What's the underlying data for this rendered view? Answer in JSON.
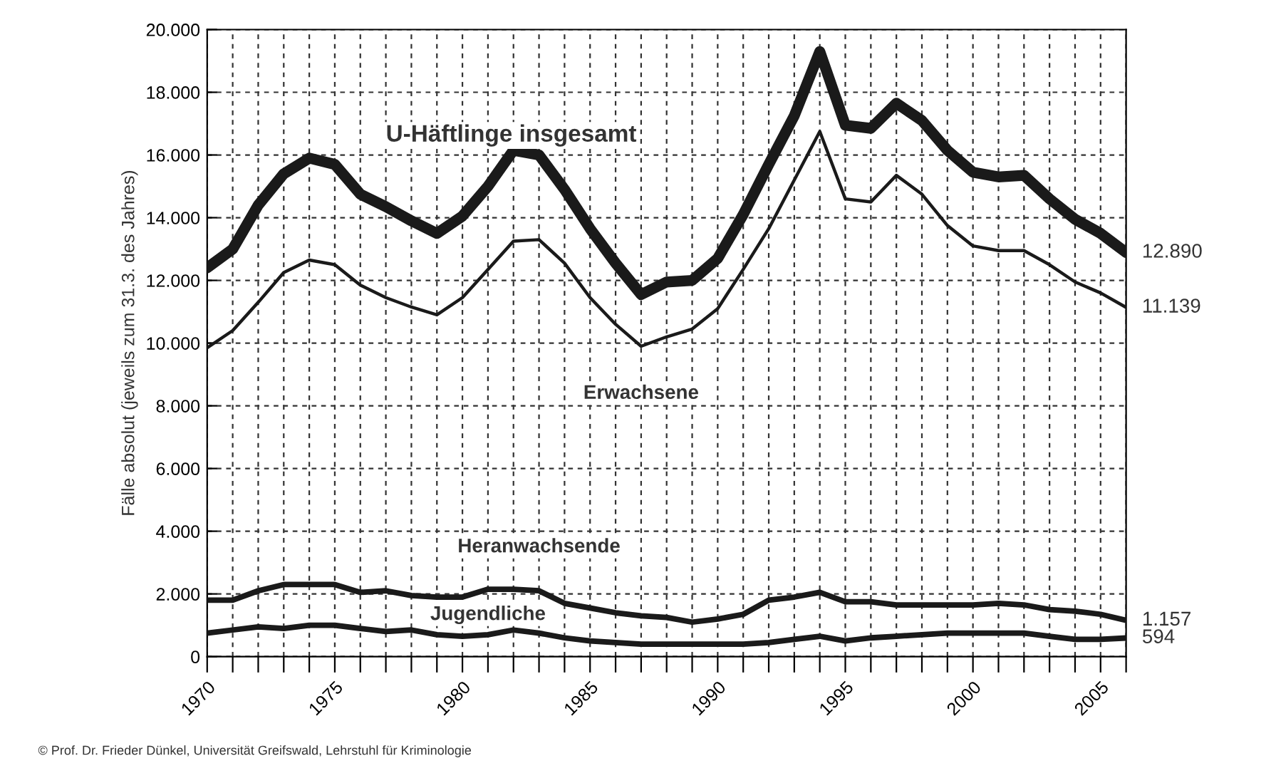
{
  "chart_data": {
    "type": "line",
    "ylabel": "Fälle absolut (jeweils zum 31.3. des Jahres)",
    "x": [
      1970,
      1971,
      1972,
      1973,
      1974,
      1975,
      1976,
      1977,
      1978,
      1979,
      1980,
      1981,
      1982,
      1983,
      1984,
      1985,
      1986,
      1987,
      1988,
      1989,
      1990,
      1991,
      1992,
      1993,
      1994,
      1995,
      1996,
      1997,
      1998,
      1999,
      2000,
      2001,
      2002,
      2003,
      2004,
      2005,
      2006
    ],
    "series": [
      {
        "name": "U-Häftlinge insgesamt",
        "color": "#1a1a1a",
        "values": [
          12400,
          13000,
          14400,
          15400,
          15900,
          15700,
          14750,
          14350,
          13900,
          13500,
          14050,
          15000,
          16150,
          16000,
          14900,
          13650,
          12550,
          11550,
          11950,
          12000,
          12700,
          14100,
          15700,
          17250,
          19300,
          16950,
          16850,
          17650,
          17100,
          16150,
          15450,
          15300,
          15350,
          14600,
          13950,
          13500,
          12890
        ],
        "value_labels": [
          null,
          null,
          null,
          null,
          null,
          null,
          null,
          null,
          null,
          null,
          null,
          null,
          null,
          null,
          null,
          null,
          null,
          null,
          null,
          null,
          null,
          null,
          null,
          null,
          null,
          null,
          null,
          null,
          null,
          null,
          null,
          null,
          null,
          null,
          null,
          null,
          "12.890"
        ]
      },
      {
        "name": "Erwachsene",
        "color": "#1a1a1a",
        "values": [
          9850,
          10400,
          11300,
          12250,
          12650,
          12500,
          11850,
          11450,
          11150,
          10900,
          11450,
          12350,
          13250,
          13300,
          12550,
          11450,
          10600,
          9900,
          10200,
          10450,
          11100,
          12350,
          13650,
          15200,
          16750,
          14600,
          14500,
          15350,
          14750,
          13750,
          13100,
          12950,
          12950,
          12500,
          11950,
          11600,
          11139
        ],
        "value_labels": [
          null,
          null,
          null,
          null,
          null,
          null,
          null,
          null,
          null,
          null,
          null,
          null,
          null,
          null,
          null,
          null,
          null,
          null,
          null,
          null,
          null,
          null,
          null,
          null,
          null,
          null,
          null,
          null,
          null,
          null,
          null,
          null,
          null,
          null,
          null,
          null,
          "11.139"
        ]
      },
      {
        "name": "Heranwachsende",
        "color": "#1a1a1a",
        "values": [
          1800,
          1800,
          2100,
          2300,
          2300,
          2300,
          2050,
          2100,
          1950,
          1900,
          1900,
          2150,
          2150,
          2100,
          1700,
          1550,
          1400,
          1300,
          1250,
          1100,
          1200,
          1350,
          1800,
          1900,
          2050,
          1750,
          1750,
          1650,
          1650,
          1650,
          1650,
          1700,
          1650,
          1500,
          1450,
          1350,
          1157
        ],
        "value_labels": [
          null,
          null,
          null,
          null,
          null,
          null,
          null,
          null,
          null,
          null,
          null,
          null,
          null,
          null,
          null,
          null,
          null,
          null,
          null,
          null,
          null,
          null,
          null,
          null,
          null,
          null,
          null,
          null,
          null,
          null,
          null,
          null,
          null,
          null,
          null,
          null,
          "1.157"
        ]
      },
      {
        "name": "Jugendliche",
        "color": "#1a1a1a",
        "values": [
          750,
          850,
          950,
          900,
          1000,
          1000,
          900,
          800,
          850,
          700,
          650,
          700,
          850,
          750,
          600,
          500,
          450,
          400,
          400,
          400,
          400,
          400,
          450,
          550,
          650,
          500,
          600,
          650,
          700,
          750,
          750,
          750,
          750,
          650,
          550,
          550,
          594
        ],
        "value_labels": [
          null,
          null,
          null,
          null,
          null,
          null,
          null,
          null,
          null,
          null,
          null,
          null,
          null,
          null,
          null,
          null,
          null,
          null,
          null,
          null,
          null,
          null,
          null,
          null,
          null,
          null,
          null,
          null,
          null,
          null,
          null,
          null,
          null,
          null,
          null,
          null,
          "594"
        ]
      }
    ],
    "xlim": [
      1970,
      2006
    ],
    "xticks": [
      1970,
      {
        "value": 1971,
        "label": null
      },
      {
        "value": 1972,
        "label": null
      },
      {
        "value": 1973,
        "label": null
      },
      {
        "value": 1974,
        "label": null
      },
      1975,
      {
        "value": 1976,
        "label": null
      },
      {
        "value": 1977,
        "label": null
      },
      {
        "value": 1978,
        "label": null
      },
      {
        "value": 1979,
        "label": null
      },
      1980,
      {
        "value": 1981,
        "label": null
      },
      {
        "value": 1982,
        "label": null
      },
      {
        "value": 1983,
        "label": null
      },
      {
        "value": 1984,
        "label": null
      },
      1985,
      {
        "value": 1986,
        "label": null
      },
      {
        "value": 1987,
        "label": null
      },
      {
        "value": 1988,
        "label": null
      },
      {
        "value": 1989,
        "label": null
      },
      1990,
      {
        "value": 1991,
        "label": null
      },
      {
        "value": 1992,
        "label": null
      },
      {
        "value": 1993,
        "label": null
      },
      {
        "value": 1994,
        "label": null
      },
      1995,
      {
        "value": 1996,
        "label": null
      },
      {
        "value": 1997,
        "label": null
      },
      {
        "value": 1998,
        "label": null
      },
      {
        "value": 1999,
        "label": null
      },
      2000,
      {
        "value": 2001,
        "label": null
      },
      {
        "value": 2002,
        "label": null
      },
      {
        "value": 2003,
        "label": null
      },
      {
        "value": 2004,
        "label": null
      },
      2005,
      {
        "value": 2006,
        "label": null
      }
    ],
    "ylim": [
      0,
      20000
    ],
    "yticks": [
      0,
      {
        "value": 2000,
        "label": "2.000"
      },
      {
        "value": 4000,
        "label": "4.000"
      },
      {
        "value": 6000,
        "label": "6.000"
      },
      {
        "value": 8000,
        "label": "8.000"
      },
      {
        "value": 10000,
        "label": "10.000"
      },
      {
        "value": 12000,
        "label": "12.000"
      },
      {
        "value": 14000,
        "label": "14.000"
      },
      {
        "value": 16000,
        "label": "16.000"
      },
      {
        "value": 18000,
        "label": "18.000"
      },
      {
        "value": 20000,
        "label": "20.000"
      }
    ],
    "grid": true,
    "line_style": "solid",
    "marker": "none",
    "legend": false,
    "annotations": [
      "© Prof. Dr. Frieder Dünkel, Universität Greifswald, Lehrstuhl für Kriminologie"
    ]
  }
}
